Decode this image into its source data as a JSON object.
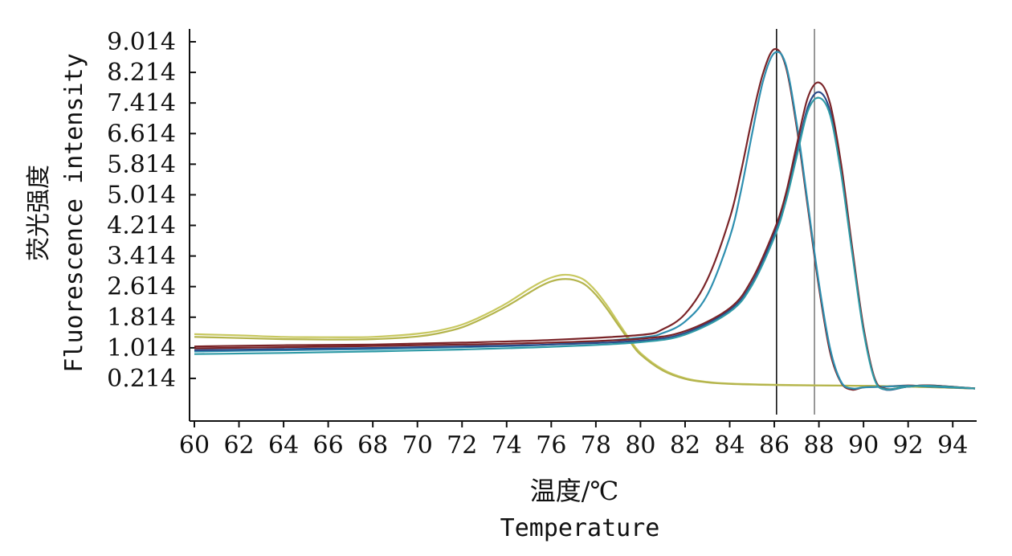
{
  "chart_data": {
    "type": "line",
    "title": "",
    "ylabel_cn": "荧光强度",
    "ylabel_en": "Fluorescence intensity",
    "xlabel_cn": "温度/℃",
    "xlabel_en": "Temperature",
    "xlim": [
      60,
      95
    ],
    "ylim": [
      -0.9,
      9.35
    ],
    "x_ticks": [
      60,
      62,
      64,
      66,
      68,
      70,
      72,
      74,
      76,
      78,
      80,
      82,
      84,
      86,
      88,
      90,
      92,
      94
    ],
    "y_ticks": [
      0.214,
      1.014,
      1.814,
      2.614,
      3.414,
      4.214,
      5.014,
      5.814,
      6.614,
      7.414,
      8.214,
      9.014
    ],
    "y_tick_labels": [
      "0.214",
      "1.014",
      "1.814",
      "2.614",
      "3.414",
      "4.214",
      "5.014",
      "5.814",
      "6.614",
      "7.414",
      "8.214",
      "9.014"
    ],
    "vertical_lines": [
      86.1,
      87.8
    ],
    "grid": false,
    "series": [
      {
        "color": "#c8c860",
        "x": [
          60,
          62,
          64,
          66,
          68,
          70,
          71,
          72,
          73,
          74,
          75,
          75.5,
          76,
          76.5,
          77,
          77.5,
          78,
          78.5,
          79,
          79.5,
          80,
          81,
          82,
          83,
          84,
          86,
          88,
          90,
          92,
          95
        ],
        "y": [
          1.37,
          1.34,
          1.3,
          1.29,
          1.3,
          1.38,
          1.47,
          1.62,
          1.87,
          2.18,
          2.55,
          2.72,
          2.85,
          2.92,
          2.9,
          2.78,
          2.5,
          2.12,
          1.68,
          1.25,
          0.88,
          0.45,
          0.22,
          0.12,
          0.08,
          0.05,
          0.03,
          0.02,
          0.0,
          -0.05
        ]
      },
      {
        "color": "#b4b44c",
        "x": [
          60,
          62,
          64,
          66,
          68,
          70,
          71,
          72,
          73,
          74,
          75,
          75.5,
          76,
          76.5,
          77,
          77.5,
          78,
          78.5,
          79,
          79.5,
          80,
          81,
          82,
          83,
          84,
          86,
          88,
          90,
          92,
          95
        ],
        "y": [
          1.3,
          1.27,
          1.24,
          1.23,
          1.24,
          1.31,
          1.4,
          1.55,
          1.8,
          2.1,
          2.45,
          2.62,
          2.75,
          2.81,
          2.79,
          2.67,
          2.4,
          2.03,
          1.61,
          1.2,
          0.84,
          0.42,
          0.2,
          0.11,
          0.07,
          0.04,
          0.03,
          0.02,
          0.0,
          -0.05
        ]
      },
      {
        "color": "#7a2428",
        "x": [
          60,
          64,
          68,
          72,
          76,
          80,
          81,
          82,
          83,
          84,
          84.5,
          85,
          85.5,
          86,
          86.5,
          87,
          87.5,
          88,
          88.5,
          89,
          89.5,
          90,
          91,
          92,
          93,
          95
        ],
        "y": [
          1.05,
          1.08,
          1.1,
          1.15,
          1.22,
          1.35,
          1.5,
          1.9,
          2.8,
          4.4,
          5.6,
          7.0,
          8.2,
          8.82,
          8.4,
          6.8,
          4.7,
          2.6,
          0.9,
          0.1,
          -0.08,
          -0.02,
          0.0,
          0.03,
          0.0,
          -0.05
        ]
      },
      {
        "color": "#2e8fb0",
        "x": [
          60,
          64,
          68,
          72,
          76,
          80,
          81,
          82,
          83,
          84,
          84.5,
          85,
          85.5,
          86,
          86.5,
          87,
          87.5,
          88,
          88.5,
          89,
          89.5,
          90,
          91,
          92,
          93,
          95
        ],
        "y": [
          0.92,
          0.95,
          0.98,
          1.03,
          1.1,
          1.28,
          1.4,
          1.7,
          2.4,
          3.9,
          5.1,
          6.6,
          8.0,
          8.72,
          8.45,
          6.9,
          4.8,
          2.7,
          1.0,
          0.12,
          -0.05,
          -0.02,
          0.0,
          0.02,
          0.0,
          -0.05
        ]
      },
      {
        "color": "#2a4a8a",
        "x": [
          60,
          64,
          68,
          72,
          76,
          80,
          82,
          84,
          85,
          86,
          86.5,
          87,
          87.5,
          88,
          88.5,
          89,
          89.5,
          90,
          90.5,
          91,
          92,
          93,
          95
        ],
        "y": [
          0.95,
          0.98,
          1.01,
          1.05,
          1.1,
          1.2,
          1.4,
          2.0,
          2.7,
          4.0,
          4.9,
          6.1,
          7.3,
          7.7,
          7.2,
          5.6,
          3.5,
          1.5,
          0.2,
          -0.08,
          0.0,
          0.03,
          -0.05
        ]
      },
      {
        "color": "#7a2428",
        "x": [
          60,
          64,
          68,
          72,
          76,
          80,
          82,
          84,
          85,
          86,
          86.5,
          87,
          87.5,
          88,
          88.5,
          89,
          89.5,
          90,
          90.5,
          91,
          92,
          93,
          95
        ],
        "y": [
          1.0,
          1.03,
          1.06,
          1.1,
          1.15,
          1.25,
          1.45,
          2.05,
          2.8,
          4.1,
          5.0,
          6.3,
          7.55,
          7.95,
          7.4,
          5.8,
          3.6,
          1.55,
          0.22,
          -0.06,
          0.0,
          0.03,
          -0.05
        ]
      },
      {
        "color": "#2f9aa6",
        "x": [
          60,
          64,
          68,
          72,
          76,
          80,
          82,
          84,
          85,
          86,
          86.5,
          87,
          87.5,
          88,
          88.5,
          89,
          89.5,
          90,
          90.5,
          91,
          92,
          93,
          95
        ],
        "y": [
          0.85,
          0.88,
          0.92,
          0.97,
          1.04,
          1.16,
          1.36,
          1.95,
          2.65,
          3.9,
          4.8,
          6.0,
          7.2,
          7.55,
          7.1,
          5.55,
          3.45,
          1.45,
          0.18,
          -0.07,
          0.0,
          0.02,
          -0.05
        ]
      }
    ]
  }
}
